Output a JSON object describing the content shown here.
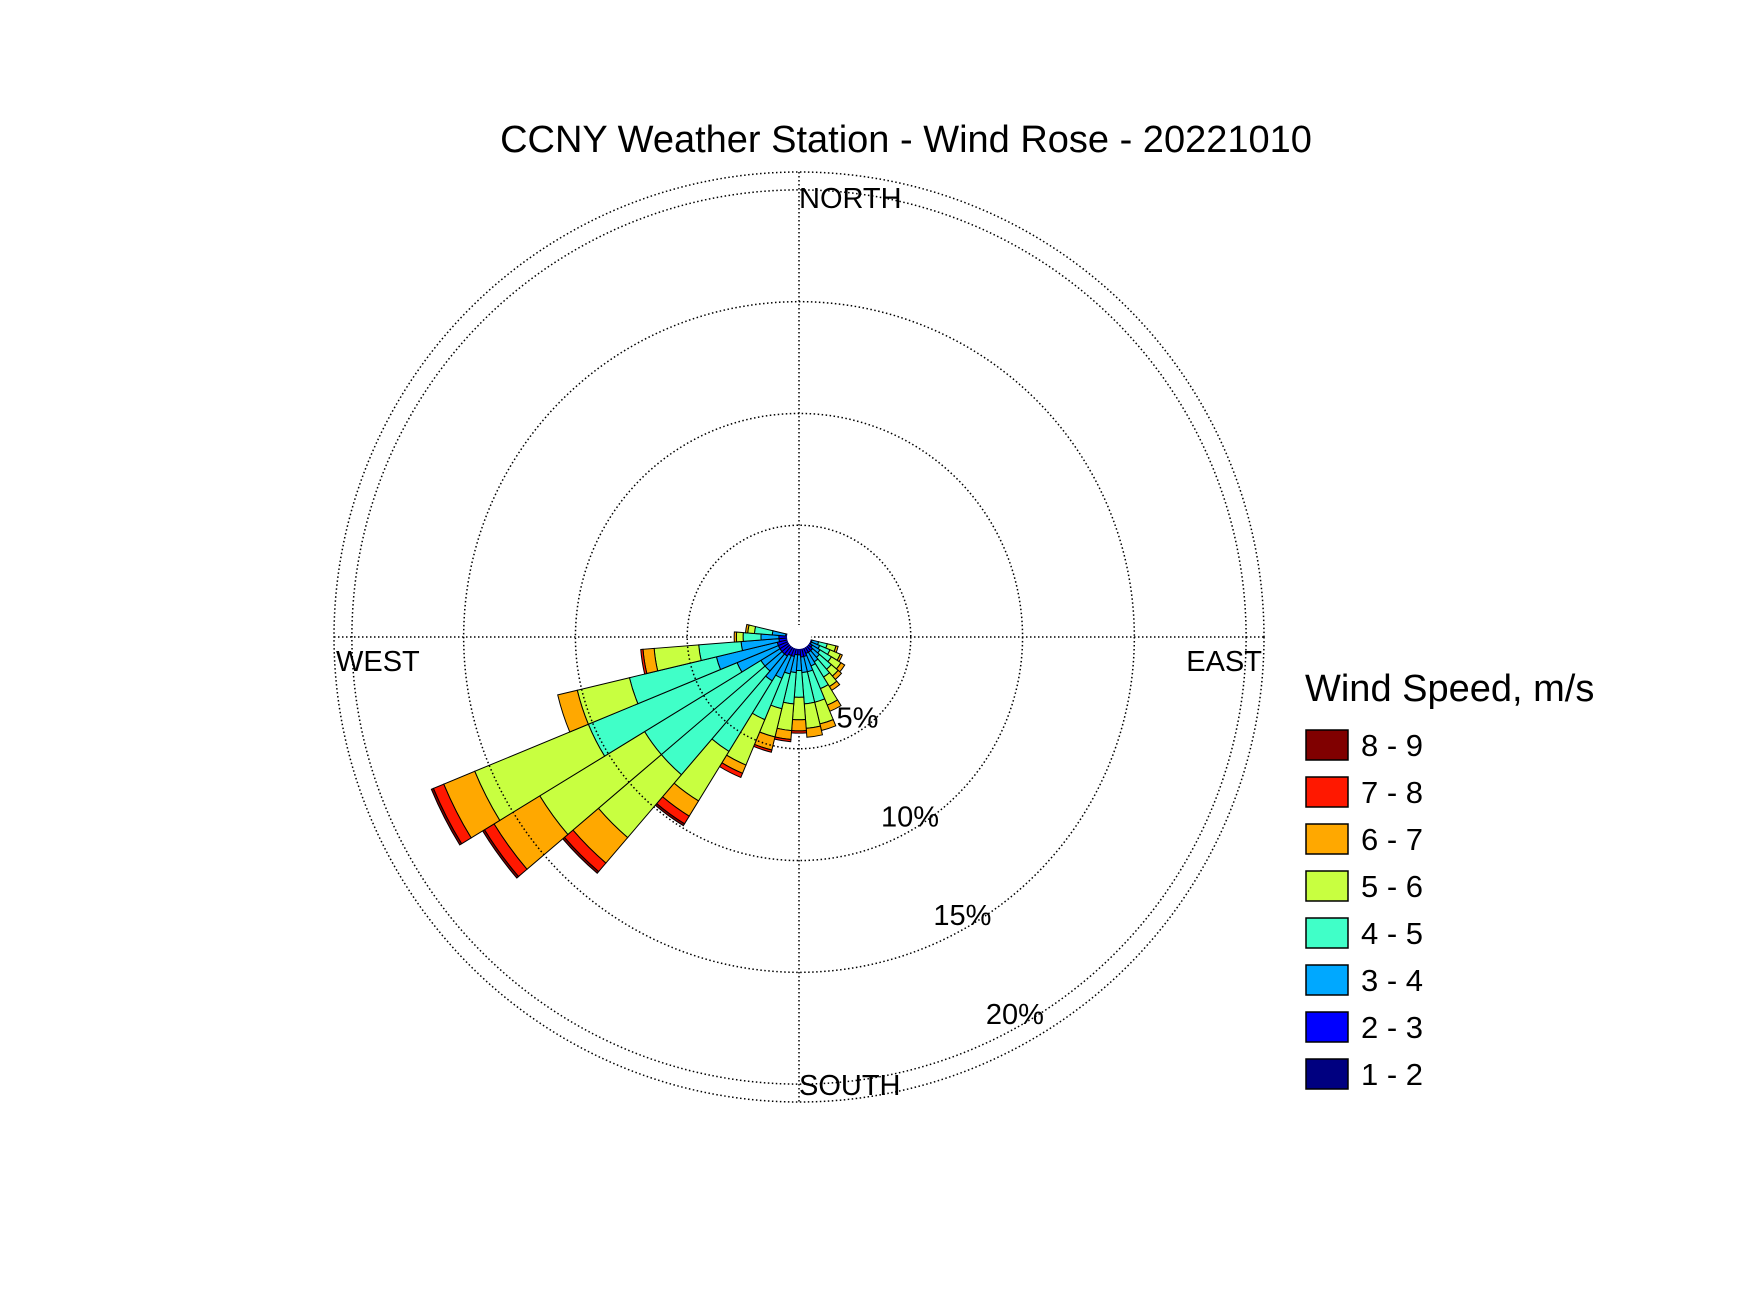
{
  "chart_data": {
    "type": "wind-rose",
    "title": "CCNY Weather Station - Wind Rose - 20221010",
    "directions": {
      "north": "NORTH",
      "east": "EAST",
      "south": "SOUTH",
      "west": "WEST"
    },
    "rings": [
      5,
      10,
      15,
      20
    ],
    "ring_labels": [
      "5%",
      "10%",
      "15%",
      "20%"
    ],
    "max_percent": 20.8,
    "legend": {
      "title": "Wind Speed, m/s",
      "position": "right"
    },
    "bins": [
      {
        "label": "1 - 2",
        "color": "#000080"
      },
      {
        "label": "2 - 3",
        "color": "#0000ff"
      },
      {
        "label": "3 - 4",
        "color": "#00a8ff"
      },
      {
        "label": "4 - 5",
        "color": "#40ffc8"
      },
      {
        "label": "5 - 6",
        "color": "#c8ff40"
      },
      {
        "label": "6 - 7",
        "color": "#ffa800"
      },
      {
        "label": "7 - 8",
        "color": "#ff1800"
      },
      {
        "label": "8 - 9",
        "color": "#800000"
      }
    ],
    "sector_width_deg": 9,
    "sectors": [
      {
        "dir": 108,
        "cumulative": [
          0.3,
          0.6,
          0.9,
          1.3,
          1.7,
          1.8,
          1.8,
          1.8
        ]
      },
      {
        "dir": 117,
        "cumulative": [
          0.3,
          0.6,
          1.0,
          1.5,
          2.0,
          2.1,
          2.1,
          2.1
        ]
      },
      {
        "dir": 126,
        "cumulative": [
          0.4,
          0.7,
          1.1,
          1.7,
          2.2,
          2.4,
          2.4,
          2.4
        ]
      },
      {
        "dir": 135,
        "cumulative": [
          0.4,
          0.8,
          1.2,
          1.9,
          2.3,
          2.5,
          2.5,
          2.5
        ]
      },
      {
        "dir": 144,
        "cumulative": [
          0.4,
          0.8,
          1.3,
          2.1,
          2.6,
          2.8,
          2.8,
          2.8
        ]
      },
      {
        "dir": 153,
        "cumulative": [
          0.4,
          0.8,
          1.4,
          2.5,
          3.3,
          3.6,
          3.6,
          3.6
        ]
      },
      {
        "dir": 162,
        "cumulative": [
          0.4,
          0.9,
          1.6,
          3.0,
          4.0,
          4.3,
          4.3,
          4.3
        ]
      },
      {
        "dir": 171,
        "cumulative": [
          0.4,
          0.9,
          1.6,
          3.0,
          4.1,
          4.5,
          4.5,
          4.5
        ]
      },
      {
        "dir": 180,
        "cumulative": [
          0.4,
          0.8,
          1.5,
          2.7,
          3.7,
          4.2,
          4.3,
          4.3
        ]
      },
      {
        "dir": 189,
        "cumulative": [
          0.4,
          0.8,
          1.6,
          3.0,
          4.2,
          4.6,
          4.7,
          4.7
        ]
      },
      {
        "dir": 198,
        "cumulative": [
          0.4,
          0.9,
          1.7,
          3.3,
          4.6,
          5.2,
          5.3,
          5.3
        ]
      },
      {
        "dir": 207,
        "cumulative": [
          0.4,
          0.9,
          2.0,
          4.0,
          6.2,
          6.6,
          6.8,
          6.8
        ]
      },
      {
        "dir": 216,
        "cumulative": [
          0.5,
          1.0,
          2.3,
          6.0,
          8.6,
          9.4,
          9.8,
          9.9
        ]
      },
      {
        "dir": 225,
        "cumulative": [
          0.5,
          1.0,
          2.0,
          8.1,
          11.8,
          13.3,
          13.8,
          13.9
        ]
      },
      {
        "dir": 234,
        "cumulative": [
          0.5,
          1.0,
          2.0,
          8.1,
          13.6,
          16.0,
          16.5,
          16.6
        ]
      },
      {
        "dir": 243,
        "cumulative": [
          0.5,
          1.0,
          3.0,
          10.2,
          15.7,
          17.2,
          17.7,
          17.8
        ]
      },
      {
        "dir": 252,
        "cumulative": [
          0.5,
          1.0,
          3.8,
          7.8,
          10.2,
          11.1,
          11.1,
          11.1
        ]
      },
      {
        "dir": 261,
        "cumulative": [
          0.4,
          0.9,
          2.6,
          4.5,
          6.5,
          7.0,
          7.1,
          7.1
        ]
      },
      {
        "dir": 270,
        "cumulative": [
          0.4,
          0.9,
          1.7,
          2.5,
          2.8,
          2.9,
          2.9,
          2.9
        ]
      },
      {
        "dir": 279,
        "cumulative": [
          0.3,
          0.6,
          1.2,
          2.0,
          2.3,
          2.4,
          2.4,
          2.4
        ]
      }
    ]
  }
}
